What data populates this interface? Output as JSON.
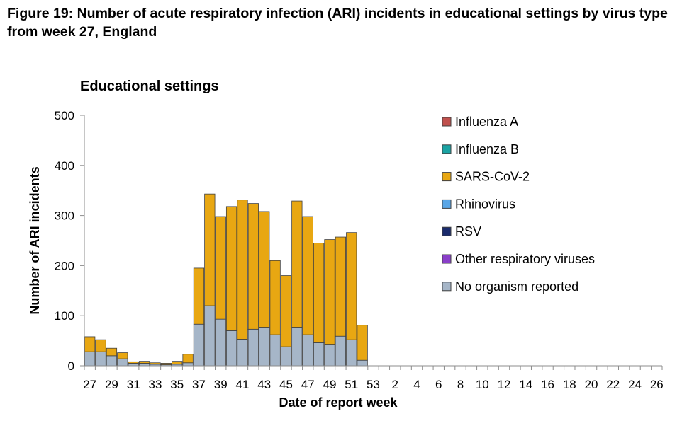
{
  "figure": {
    "title": "Figure 19: Number of acute respiratory infection (ARI) incidents in educational settings by virus type from week 27, England"
  },
  "chart_data": {
    "type": "bar",
    "stacked": true,
    "title": "Educational settings",
    "xlabel": "Date of report week",
    "ylabel": "Number of ARI incidents",
    "ylim": [
      0,
      500
    ],
    "yticks": [
      0,
      100,
      200,
      300,
      400,
      500
    ],
    "categories": [
      "27",
      "28",
      "29",
      "30",
      "31",
      "32",
      "33",
      "34",
      "35",
      "36",
      "37",
      "38",
      "39",
      "40",
      "41",
      "42",
      "43",
      "44",
      "45",
      "46",
      "47",
      "48",
      "49",
      "50",
      "51",
      "52",
      "53",
      "1",
      "2",
      "3",
      "4",
      "5",
      "6",
      "7",
      "8",
      "9",
      "10",
      "11",
      "12",
      "13",
      "14",
      "15",
      "16",
      "17",
      "18",
      "19",
      "20",
      "21",
      "22",
      "23",
      "24",
      "25",
      "26"
    ],
    "xtick_labels": [
      "27",
      "29",
      "31",
      "33",
      "35",
      "37",
      "39",
      "41",
      "43",
      "45",
      "47",
      "49",
      "51",
      "53",
      "2",
      "4",
      "6",
      "8",
      "10",
      "12",
      "14",
      "16",
      "18",
      "20",
      "22",
      "24",
      "26"
    ],
    "legend_position": "right",
    "series": [
      {
        "name": "Influenza A",
        "color": "#c0504d",
        "values": [
          0,
          0,
          0,
          0,
          0,
          0,
          0,
          0,
          0,
          0,
          0,
          0,
          0,
          0,
          0,
          0,
          0,
          0,
          0,
          0,
          0,
          0,
          0,
          0,
          0,
          0,
          0,
          0,
          0,
          0,
          0,
          0,
          0,
          0,
          0,
          0,
          0,
          0,
          0,
          0,
          0,
          0,
          0,
          0,
          0,
          0,
          0,
          0,
          0,
          0,
          0,
          0,
          0
        ]
      },
      {
        "name": "Influenza B",
        "color": "#1aa3a3",
        "values": [
          0,
          0,
          0,
          0,
          0,
          0,
          0,
          0,
          0,
          0,
          0,
          0,
          0,
          0,
          0,
          0,
          0,
          0,
          0,
          0,
          0,
          0,
          0,
          0,
          0,
          0,
          0,
          0,
          0,
          0,
          0,
          0,
          0,
          0,
          0,
          0,
          0,
          0,
          0,
          0,
          0,
          0,
          0,
          0,
          0,
          0,
          0,
          0,
          0,
          0,
          0,
          0,
          0
        ]
      },
      {
        "name": "SARS-CoV-2",
        "color": "#e8a712",
        "values": [
          30,
          24,
          15,
          12,
          3,
          4,
          3,
          3,
          6,
          17,
          112,
          223,
          205,
          248,
          278,
          251,
          231,
          148,
          142,
          252,
          236,
          199,
          209,
          198,
          214,
          70,
          0,
          0,
          0,
          0,
          0,
          0,
          0,
          0,
          0,
          0,
          0,
          0,
          0,
          0,
          0,
          0,
          0,
          0,
          0,
          0,
          0,
          0,
          0,
          0,
          0,
          0,
          0
        ]
      },
      {
        "name": "Rhinovirus",
        "color": "#5aa6e6",
        "values": [
          0,
          0,
          0,
          0,
          0,
          0,
          0,
          0,
          0,
          0,
          0,
          0,
          0,
          0,
          0,
          0,
          0,
          0,
          0,
          0,
          0,
          0,
          0,
          0,
          0,
          0,
          0,
          0,
          0,
          0,
          0,
          0,
          0,
          0,
          0,
          0,
          0,
          0,
          0,
          0,
          0,
          0,
          0,
          0,
          0,
          0,
          0,
          0,
          0,
          0,
          0,
          0,
          0
        ]
      },
      {
        "name": "RSV",
        "color": "#1a2b6d",
        "values": [
          0,
          0,
          0,
          0,
          0,
          0,
          0,
          0,
          0,
          0,
          0,
          0,
          0,
          0,
          0,
          0,
          0,
          0,
          0,
          0,
          0,
          0,
          0,
          0,
          0,
          0,
          0,
          0,
          0,
          0,
          0,
          0,
          0,
          0,
          0,
          0,
          0,
          0,
          0,
          0,
          0,
          0,
          0,
          0,
          0,
          0,
          0,
          0,
          0,
          0,
          0,
          0,
          0
        ]
      },
      {
        "name": "Other respiratory viruses",
        "color": "#8a3fc9",
        "values": [
          0,
          0,
          0,
          0,
          0,
          0,
          0,
          0,
          0,
          0,
          0,
          0,
          0,
          0,
          0,
          0,
          0,
          0,
          0,
          0,
          0,
          0,
          0,
          0,
          0,
          0,
          0,
          0,
          0,
          0,
          0,
          0,
          0,
          0,
          0,
          0,
          0,
          0,
          0,
          0,
          0,
          0,
          0,
          0,
          0,
          0,
          0,
          0,
          0,
          0,
          0,
          0,
          0
        ]
      },
      {
        "name": "No organism reported",
        "color": "#a6b6c8",
        "values": [
          28,
          28,
          20,
          14,
          5,
          5,
          3,
          2,
          3,
          6,
          83,
          120,
          93,
          70,
          53,
          73,
          77,
          62,
          38,
          77,
          62,
          46,
          43,
          59,
          52,
          11,
          0,
          0,
          0,
          0,
          0,
          0,
          0,
          0,
          0,
          0,
          0,
          0,
          0,
          0,
          0,
          0,
          0,
          0,
          0,
          0,
          0,
          0,
          0,
          0,
          0,
          0,
          0
        ]
      }
    ],
    "stack_order": [
      "No organism reported",
      "Other respiratory viruses",
      "RSV",
      "Rhinovirus",
      "SARS-CoV-2",
      "Influenza B",
      "Influenza A"
    ]
  }
}
